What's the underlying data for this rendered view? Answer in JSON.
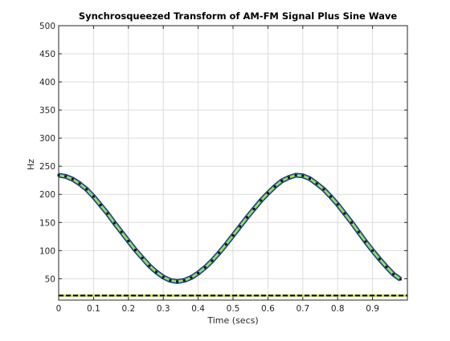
{
  "chart_data": {
    "type": "line",
    "title": "Synchrosqueezed Transform of AM-FM Signal Plus Sine Wave",
    "xlabel": "Time (secs)",
    "ylabel": "Hz",
    "xlim": [
      0,
      1
    ],
    "ylim": [
      12,
      500
    ],
    "grid": true,
    "xticks": [
      "0",
      "0.1",
      "0.2",
      "0.3",
      "0.4",
      "0.5",
      "0.6",
      "0.7",
      "0.8",
      "0.9"
    ],
    "yticks": [
      "50",
      "100",
      "150",
      "200",
      "250",
      "300",
      "350",
      "400",
      "450",
      "500"
    ],
    "series": [
      {
        "style": "ridge",
        "x": [
          0.0,
          0.02,
          0.04,
          0.06,
          0.08,
          0.1,
          0.12,
          0.14,
          0.16,
          0.18,
          0.2,
          0.22,
          0.24,
          0.26,
          0.28,
          0.3,
          0.32,
          0.34,
          0.36,
          0.38,
          0.4,
          0.42,
          0.44,
          0.46,
          0.48,
          0.5,
          0.52,
          0.54,
          0.56,
          0.58,
          0.6,
          0.62,
          0.64,
          0.66,
          0.68,
          0.7,
          0.72,
          0.74,
          0.76,
          0.78,
          0.8,
          0.82,
          0.84,
          0.86,
          0.88,
          0.9,
          0.92,
          0.94,
          0.96,
          0.98
        ],
        "y": [
          234,
          232,
          227,
          219,
          209,
          196,
          181,
          166,
          149,
          133,
          117,
          101,
          87,
          73,
          62,
          53,
          47,
          45,
          47,
          52,
          60,
          70,
          82,
          96,
          111,
          127,
          143,
          159,
          174,
          189,
          202,
          214,
          224,
          230,
          234,
          233,
          228,
          219,
          209,
          196,
          182,
          166,
          150,
          133,
          116,
          100,
          85,
          71,
          58,
          49
        ]
      },
      {
        "style": "dashed",
        "x": [
          0.0,
          1.0
        ],
        "y": [
          20,
          20
        ]
      }
    ]
  },
  "colors": {
    "ridge_outer": "#2b2b7a",
    "ridge_inner": "#2ec4a6",
    "ridge_core": "#d9e021",
    "dashed": "#000000",
    "grid": "#dcdcdc",
    "axis": "#262626"
  }
}
